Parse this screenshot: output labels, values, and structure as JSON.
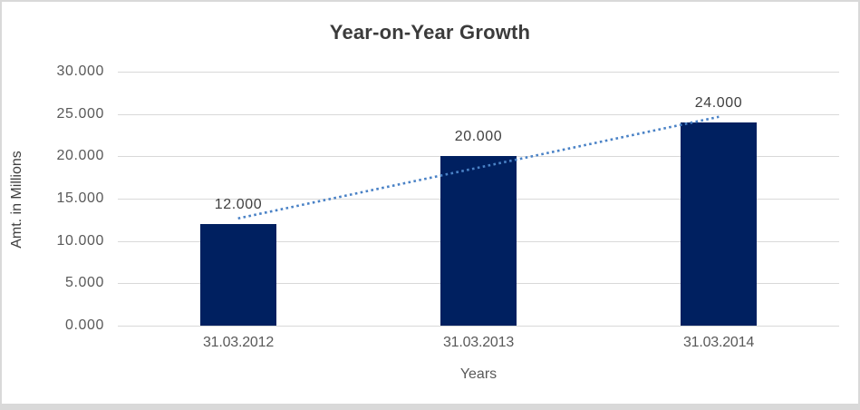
{
  "chart_data": {
    "type": "bar",
    "title": "Year-on-Year Growth",
    "categories": [
      "31.03.2012",
      "31.03.2013",
      "31.03.2014"
    ],
    "values": [
      12,
      20,
      24
    ],
    "data_labels": [
      "12.000",
      "20.000",
      "24.000"
    ],
    "xlabel": "Years",
    "ylabel": "Amt. in Millions",
    "ylim": [
      0,
      30
    ],
    "ytick_step": 5,
    "ytick_labels": [
      "0.000",
      "5.000",
      "10.000",
      "15.000",
      "20.000",
      "25.000",
      "30.000"
    ],
    "grid": true,
    "legend": false,
    "bar_color": "#002060",
    "trendline": {
      "style": "dotted",
      "color": "#4A82C6",
      "start_value": 12.667,
      "end_value": 24.667,
      "span": "first category center to last category center"
    },
    "layout_colors": {
      "gridline": "#d9d9d9",
      "axis_text": "#595959",
      "title_text": "#3b3b3b",
      "data_label_text": "#404040",
      "border": "#d9d9d9",
      "background": "#ffffff"
    }
  }
}
